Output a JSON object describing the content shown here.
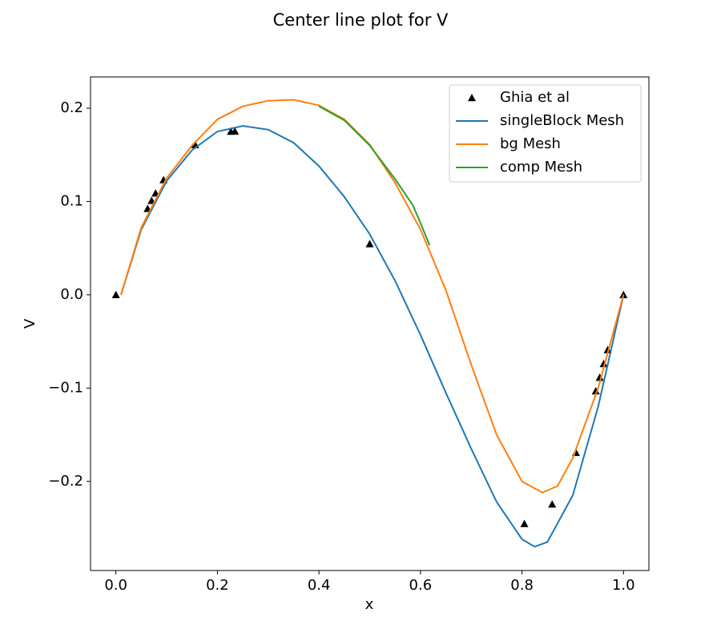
{
  "chart_data": {
    "type": "line",
    "title": "Center line plot  for V",
    "x_label": "x",
    "y_label": "V",
    "xlim": [
      -0.05,
      1.05
    ],
    "ylim": [
      -0.2955,
      0.2335
    ],
    "xticks": [
      {
        "value": 0,
        "label": "0.0"
      },
      {
        "value": 0.2,
        "label": "0.2"
      },
      {
        "value": 0.4,
        "label": "0.4"
      },
      {
        "value": 0.6,
        "label": "0.6"
      },
      {
        "value": 0.8,
        "label": "0.8"
      },
      {
        "value": 1,
        "label": "1.0"
      }
    ],
    "yticks": [
      {
        "value": -0.2,
        "label": "−0.2"
      },
      {
        "value": -0.1,
        "label": "−0.1"
      },
      {
        "value": 0,
        "label": "0.0"
      },
      {
        "value": 0.1,
        "label": "0.1"
      },
      {
        "value": 0.2,
        "label": "0.2"
      }
    ],
    "legend": "upper right",
    "series": [
      {
        "name": "Ghia et al",
        "type": "scatter",
        "color": "#000000",
        "x": [
          1.0,
          0.9688,
          0.9609,
          0.9531,
          0.9453,
          0.9063,
          0.8594,
          0.8047,
          0.5,
          0.2344,
          0.2266,
          0.1563,
          0.0938,
          0.0781,
          0.0703,
          0.0625,
          0.0
        ],
        "values": [
          0,
          -0.05906,
          -0.07391,
          -0.08864,
          -0.10313,
          -0.16914,
          -0.22445,
          -0.24533,
          0.05454,
          0.17527,
          0.17507,
          0.16077,
          0.12317,
          0.1089,
          0.10091,
          0.09233,
          0
        ]
      },
      {
        "name": "singleBlock Mesh",
        "type": "line",
        "color": "#1f77b4",
        "x": [
          0.01,
          0.05,
          0.1,
          0.15,
          0.2,
          0.25,
          0.3,
          0.35,
          0.4,
          0.45,
          0.5,
          0.55,
          0.6,
          0.65,
          0.7,
          0.75,
          0.8,
          0.825,
          0.85,
          0.9,
          0.95,
          1.0
        ],
        "values": [
          0,
          0.07,
          0.122,
          0.155,
          0.175,
          0.181,
          0.177,
          0.163,
          0.138,
          0.105,
          0.065,
          0.015,
          -0.043,
          -0.105,
          -0.165,
          -0.222,
          -0.262,
          -0.27,
          -0.265,
          -0.215,
          -0.12,
          0
        ]
      },
      {
        "name": "bg Mesh",
        "type": "line",
        "color": "#ff7f0e",
        "x": [
          0.01,
          0.05,
          0.1,
          0.15,
          0.2,
          0.25,
          0.3,
          0.35,
          0.4,
          0.45,
          0.5,
          0.55,
          0.6,
          0.65,
          0.7,
          0.75,
          0.8,
          0.84,
          0.87,
          0.9,
          0.95,
          1.0
        ],
        "values": [
          0,
          0.072,
          0.125,
          0.16,
          0.188,
          0.202,
          0.208,
          0.209,
          0.203,
          0.188,
          0.161,
          0.12,
          0.07,
          0.005,
          -0.075,
          -0.15,
          -0.2,
          -0.212,
          -0.205,
          -0.175,
          -0.1,
          0
        ]
      },
      {
        "name": "comp Mesh",
        "type": "line",
        "color": "#2ca02c",
        "x": [
          0.4,
          0.45,
          0.5,
          0.55,
          0.585,
          0.6,
          0.618
        ],
        "values": [
          0.202,
          0.187,
          0.16,
          0.124,
          0.096,
          0.077,
          0.053
        ]
      }
    ]
  }
}
